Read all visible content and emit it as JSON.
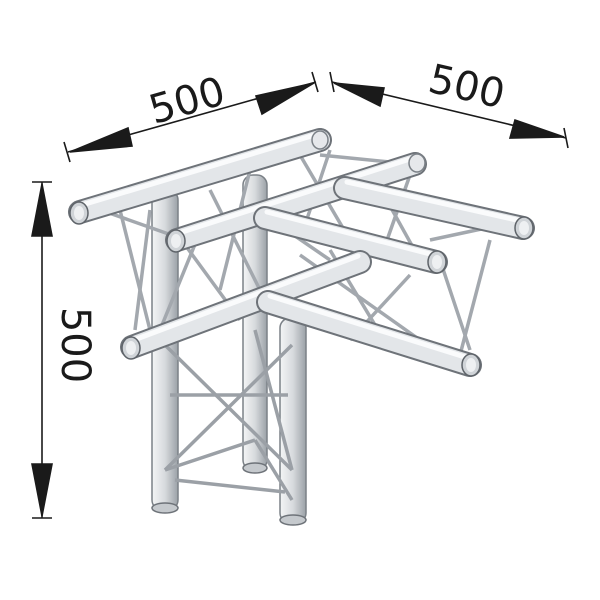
{
  "dimensions": {
    "top_left": "500",
    "top_right": "500",
    "left_vertical": "500"
  },
  "colors": {
    "metal_light": "#eef0f2",
    "metal_mid": "#c9cdd2",
    "metal_dark": "#8d9298",
    "outline": "#5f646a",
    "dimension": "#1a1a1a"
  }
}
